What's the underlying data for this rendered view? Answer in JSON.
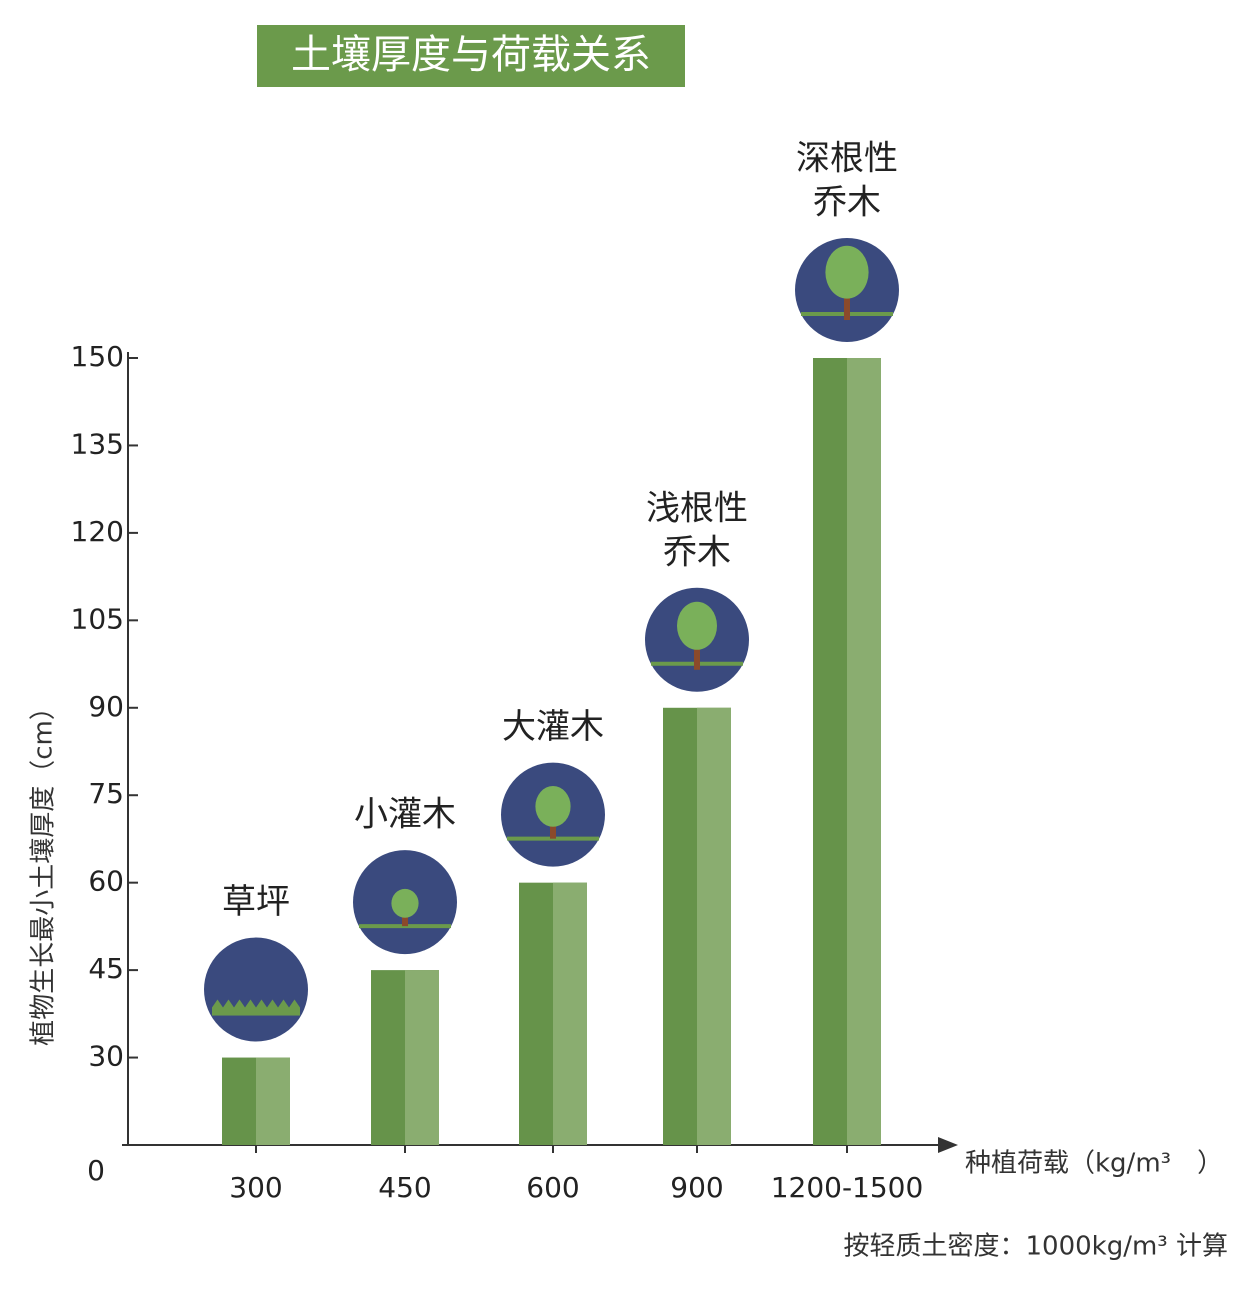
{
  "chart_data": {
    "type": "bar",
    "title": "土壤厚度与荷载关系",
    "y_label": "植物生长最小土壤厚度（cm）",
    "x_label": "种植荷载（kg/m³　）",
    "note": "按轻质土密度：1000kg/m³ 计算",
    "origin_label": "0",
    "categories": [
      "300",
      "450",
      "600",
      "900",
      "1200-1500"
    ],
    "values": [
      30,
      45,
      60,
      90,
      150
    ],
    "labels": [
      [
        "草坪"
      ],
      [
        "小灌木"
      ],
      [
        "大灌木"
      ],
      [
        "浅根性",
        "乔木"
      ],
      [
        "深根性",
        "乔木"
      ]
    ],
    "colors": [
      "#66934a",
      "#8aad70"
    ],
    "ylim": [
      15,
      150
    ],
    "yticks": [
      30,
      45,
      60,
      75,
      90,
      105,
      120,
      135,
      150
    ]
  }
}
